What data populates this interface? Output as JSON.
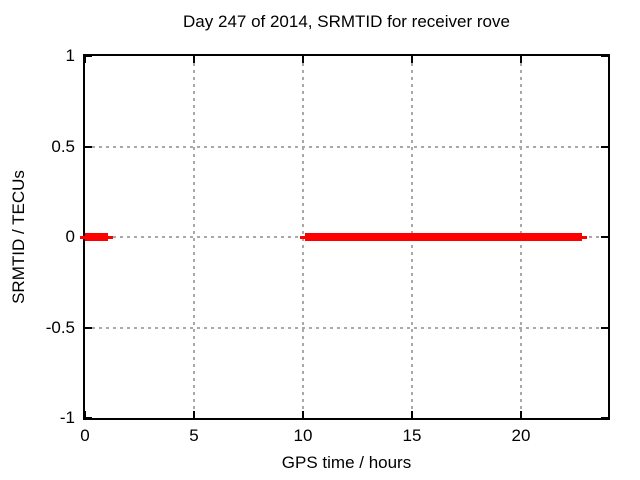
{
  "window": {
    "background": "#ffffff"
  },
  "colors": {
    "background": "#ffffff",
    "text": "#000000",
    "axis": "#000000",
    "grid": "#a9a9a9",
    "series": "#ff0000"
  },
  "chart_data": {
    "type": "line",
    "title": "Day 247 of 2014, SRMTID for receiver rove",
    "xlabel": "GPS time / hours",
    "ylabel": "SRMTID / TECUs",
    "xlim": [
      0,
      24
    ],
    "ylim": [
      -1,
      1
    ],
    "grid": "dashed",
    "legend": "none",
    "xticks": [
      {
        "value": 0,
        "label": "0"
      },
      {
        "value": 5,
        "label": "5"
      },
      {
        "value": 10,
        "label": "10"
      },
      {
        "value": 15,
        "label": "15"
      },
      {
        "value": 20,
        "label": "20"
      }
    ],
    "yticks": [
      {
        "value": -1,
        "label": "-1"
      },
      {
        "value": -0.5,
        "label": "-0.5"
      },
      {
        "value": 0,
        "label": "0"
      },
      {
        "value": 0.5,
        "label": "0.5"
      },
      {
        "value": 1,
        "label": "1"
      }
    ],
    "series": [
      {
        "name": "SRMTID",
        "color": "#ff0000",
        "style": "thick-line",
        "segments": [
          {
            "y": 0,
            "x_start": 0.0,
            "x_end": 1.05
          },
          {
            "y": 0,
            "x_start": 10.1,
            "x_end": 22.8
          }
        ]
      }
    ]
  }
}
